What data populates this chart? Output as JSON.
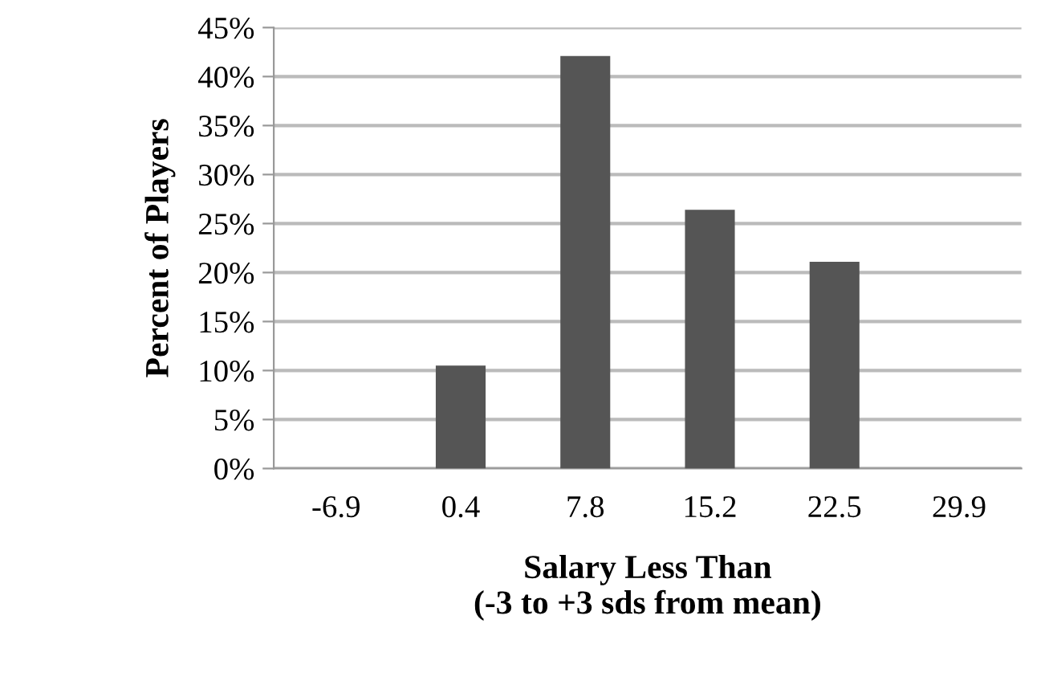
{
  "chart_data": {
    "type": "bar",
    "xlabel": "Salary Less Than\n(-3 to +3 sds from mean)",
    "ylabel": "Percent of Players",
    "categories": [
      "-6.9",
      "0.4",
      "7.8",
      "15.2",
      "22.5",
      "29.9"
    ],
    "values": [
      0,
      10.5,
      42.1,
      26.4,
      21.1,
      0
    ],
    "color": "#555555",
    "ylim": [
      0,
      45
    ],
    "yticks": [
      {
        "value": 0,
        "label": "0%"
      },
      {
        "value": 5,
        "label": "5%"
      },
      {
        "value": 10,
        "label": "10%"
      },
      {
        "value": 15,
        "label": "15%"
      },
      {
        "value": 20,
        "label": "20%"
      },
      {
        "value": 25,
        "label": "25%"
      },
      {
        "value": 30,
        "label": "30%"
      },
      {
        "value": 35,
        "label": "35%"
      },
      {
        "value": 40,
        "label": "40%"
      },
      {
        "value": 45,
        "label": "45%"
      }
    ],
    "grid": "y"
  }
}
